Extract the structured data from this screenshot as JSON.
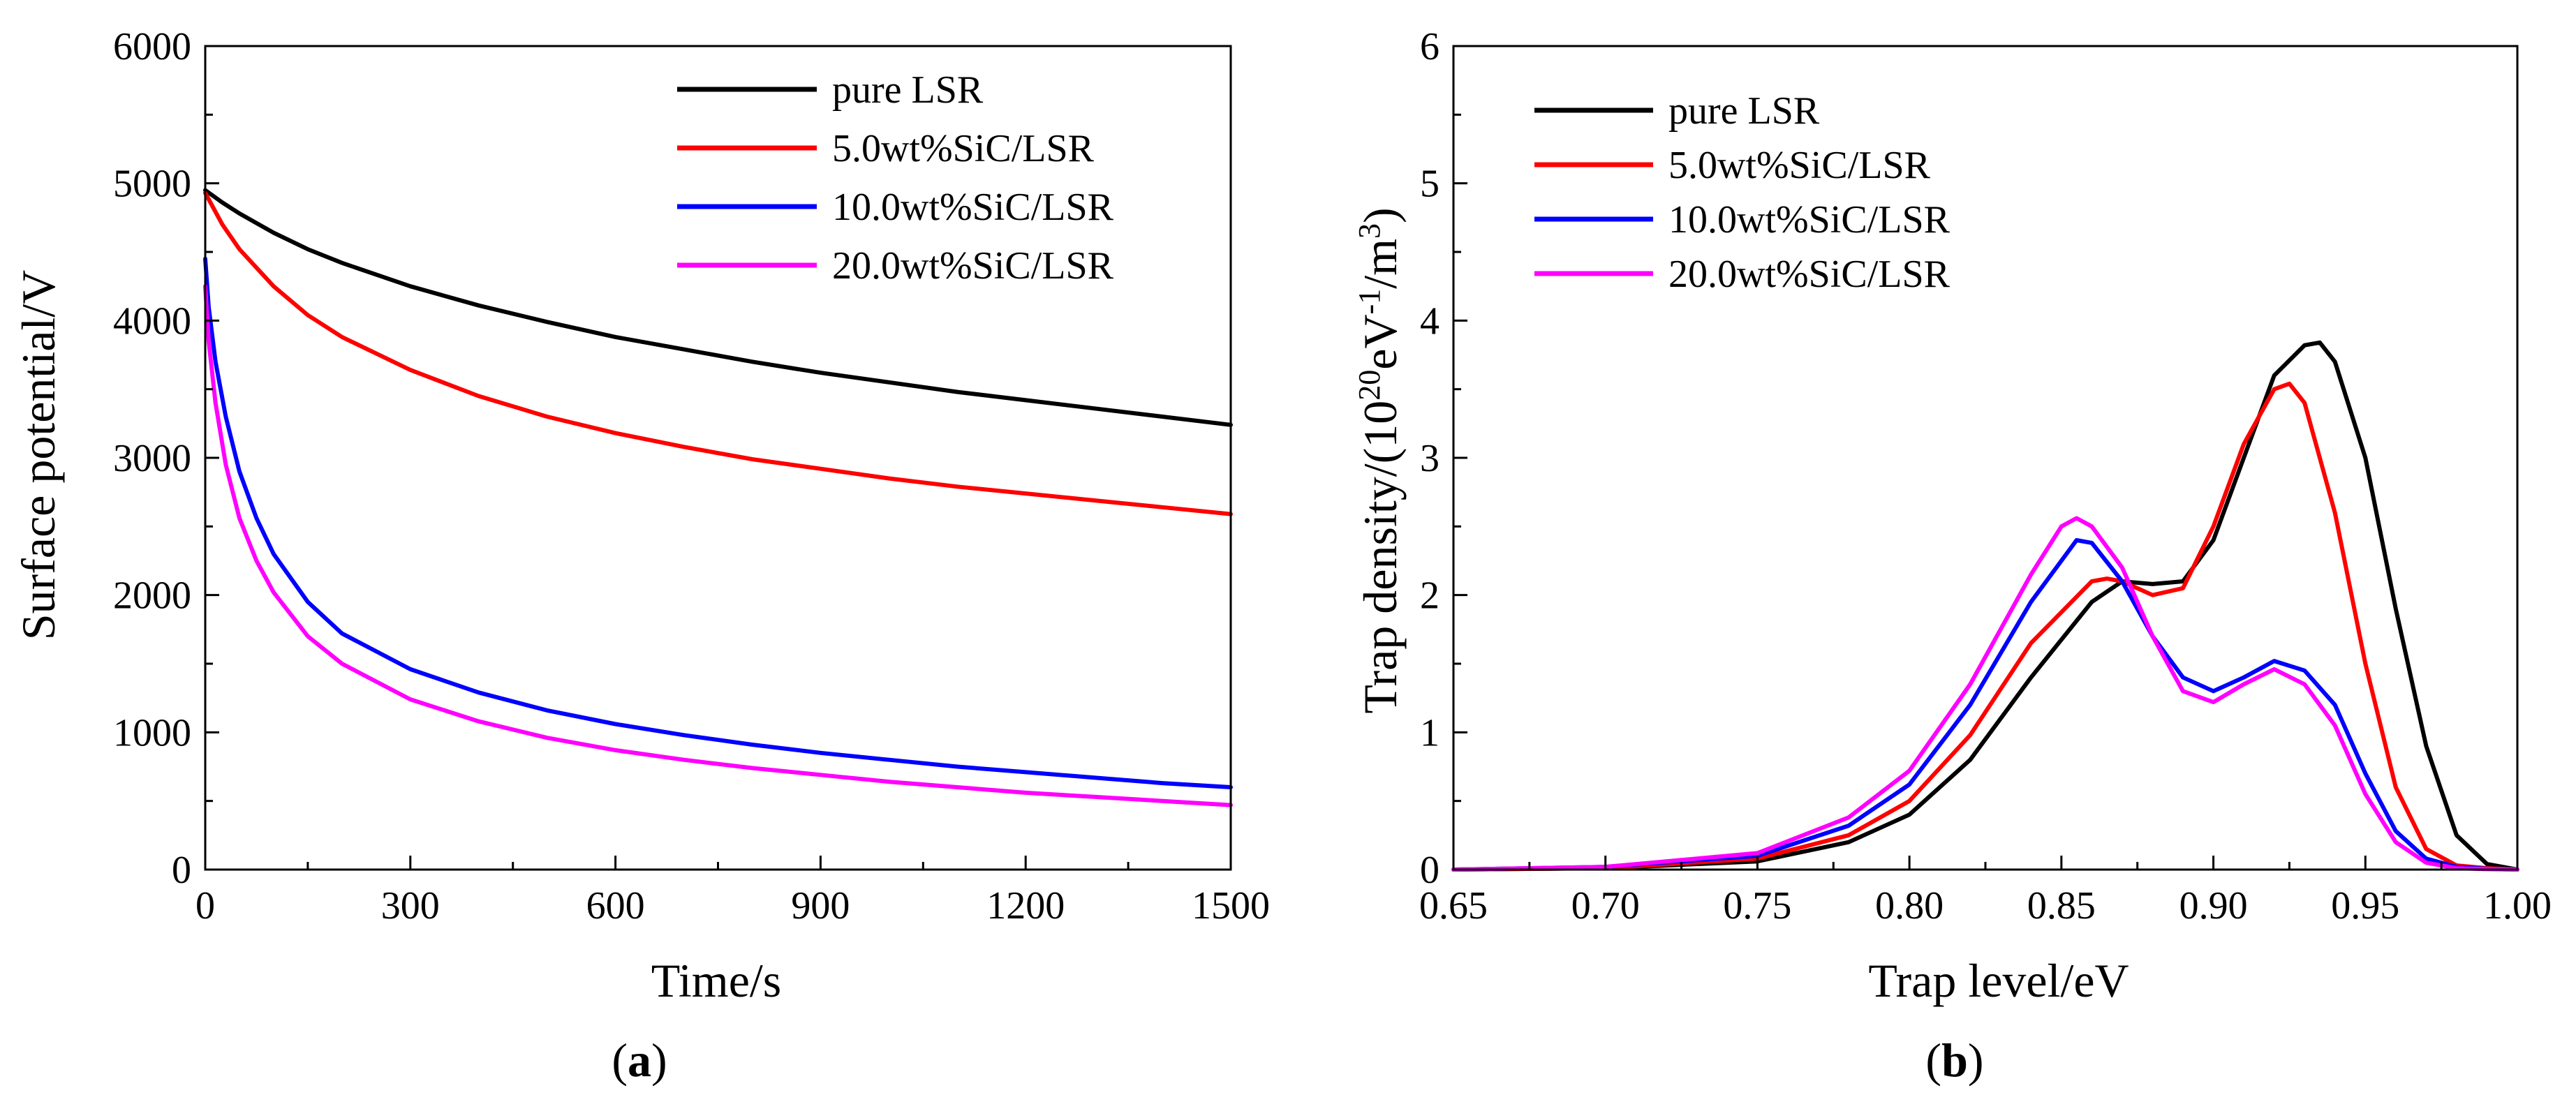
{
  "chart_data": [
    {
      "id": "a",
      "type": "line",
      "panel_label": "(a)",
      "panel_letter": "a",
      "xlabel": "Time/s",
      "ylabel": "Surface potential/V",
      "xlim": [
        0,
        1500
      ],
      "ylim": [
        0,
        6000
      ],
      "xticks": [
        0,
        300,
        600,
        900,
        1200,
        1500
      ],
      "xtick_labels": [
        "0",
        "300",
        "600",
        "900",
        "1200",
        "1500"
      ],
      "yticks": [
        0,
        1000,
        2000,
        3000,
        4000,
        5000,
        6000
      ],
      "ytick_labels": [
        "0",
        "1000",
        "2000",
        "3000",
        "4000",
        "5000",
        "6000"
      ],
      "grid": false,
      "legend_position": "top-right",
      "series": [
        {
          "name": "pure LSR",
          "color": "#000000",
          "x": [
            0,
            25,
            50,
            100,
            150,
            200,
            300,
            400,
            500,
            600,
            700,
            800,
            900,
            1000,
            1100,
            1200,
            1300,
            1400,
            1500
          ],
          "y": [
            4950,
            4860,
            4780,
            4640,
            4520,
            4420,
            4250,
            4110,
            3990,
            3880,
            3790,
            3700,
            3620,
            3550,
            3480,
            3420,
            3360,
            3300,
            3240
          ]
        },
        {
          "name": "5.0wt%SiC/LSR",
          "color": "#ff0000",
          "x": [
            0,
            25,
            50,
            100,
            150,
            200,
            300,
            400,
            500,
            600,
            700,
            800,
            900,
            1000,
            1100,
            1200,
            1300,
            1400,
            1500
          ],
          "y": [
            4930,
            4700,
            4520,
            4250,
            4040,
            3880,
            3640,
            3450,
            3300,
            3180,
            3080,
            2990,
            2920,
            2850,
            2790,
            2740,
            2690,
            2640,
            2590
          ]
        },
        {
          "name": "10.0wt%SiC/LSR",
          "color": "#0000ff",
          "x": [
            0,
            5,
            15,
            30,
            50,
            75,
            100,
            150,
            200,
            300,
            400,
            500,
            600,
            700,
            800,
            900,
            1000,
            1100,
            1200,
            1300,
            1400,
            1500
          ],
          "y": [
            4450,
            4100,
            3700,
            3300,
            2900,
            2560,
            2300,
            1950,
            1720,
            1460,
            1290,
            1160,
            1060,
            980,
            910,
            850,
            800,
            750,
            710,
            670,
            630,
            600
          ]
        },
        {
          "name": "20.0wt%SiC/LSR",
          "color": "#ff00ff",
          "x": [
            0,
            5,
            15,
            30,
            50,
            75,
            100,
            150,
            200,
            300,
            400,
            500,
            600,
            700,
            800,
            900,
            1000,
            1100,
            1200,
            1300,
            1400,
            1500
          ],
          "y": [
            4250,
            3850,
            3400,
            2950,
            2560,
            2250,
            2020,
            1700,
            1500,
            1240,
            1080,
            960,
            870,
            800,
            740,
            690,
            640,
            600,
            560,
            530,
            500,
            470
          ]
        }
      ]
    },
    {
      "id": "b",
      "type": "line",
      "panel_label": "(b)",
      "panel_letter": "b",
      "xlabel": "Trap level/eV",
      "ylabel": "Trap density/(10²⁰eV⁻¹/m³)",
      "xlim": [
        0.65,
        1.0
      ],
      "ylim": [
        0,
        6
      ],
      "xticks": [
        0.65,
        0.7,
        0.75,
        0.8,
        0.85,
        0.9,
        0.95,
        1.0
      ],
      "xtick_labels": [
        "0.65",
        "0.70",
        "0.75",
        "0.80",
        "0.85",
        "0.90",
        "0.95",
        "1.00"
      ],
      "yticks": [
        0,
        1,
        2,
        3,
        4,
        5,
        6
      ],
      "ytick_labels": [
        "0",
        "1",
        "2",
        "3",
        "4",
        "5",
        "6"
      ],
      "grid": false,
      "legend_position": "top-left",
      "series": [
        {
          "name": "pure LSR",
          "color": "#000000",
          "x": [
            0.65,
            0.7,
            0.75,
            0.78,
            0.8,
            0.82,
            0.84,
            0.86,
            0.87,
            0.88,
            0.89,
            0.9,
            0.91,
            0.92,
            0.93,
            0.935,
            0.94,
            0.95,
            0.96,
            0.97,
            0.98,
            0.99,
            1.0
          ],
          "y": [
            0,
            0.01,
            0.06,
            0.2,
            0.4,
            0.8,
            1.4,
            1.95,
            2.1,
            2.08,
            2.1,
            2.4,
            3.0,
            3.6,
            3.82,
            3.84,
            3.7,
            3.0,
            1.9,
            0.9,
            0.25,
            0.04,
            0
          ]
        },
        {
          "name": "5.0wt%SiC/LSR",
          "color": "#ff0000",
          "x": [
            0.65,
            0.7,
            0.75,
            0.78,
            0.8,
            0.82,
            0.84,
            0.86,
            0.865,
            0.87,
            0.88,
            0.89,
            0.9,
            0.91,
            0.92,
            0.925,
            0.93,
            0.94,
            0.95,
            0.96,
            0.97,
            0.98,
            0.99,
            1.0
          ],
          "y": [
            0,
            0.01,
            0.08,
            0.25,
            0.5,
            0.98,
            1.65,
            2.1,
            2.12,
            2.1,
            2.0,
            2.05,
            2.5,
            3.1,
            3.5,
            3.54,
            3.4,
            2.6,
            1.5,
            0.6,
            0.15,
            0.03,
            0.01,
            0
          ]
        },
        {
          "name": "10.0wt%SiC/LSR",
          "color": "#0000ff",
          "x": [
            0.65,
            0.7,
            0.75,
            0.78,
            0.8,
            0.82,
            0.84,
            0.855,
            0.86,
            0.87,
            0.88,
            0.89,
            0.9,
            0.91,
            0.92,
            0.93,
            0.94,
            0.95,
            0.96,
            0.97,
            0.98,
            0.99,
            1.0
          ],
          "y": [
            0,
            0.02,
            0.1,
            0.32,
            0.62,
            1.2,
            1.95,
            2.4,
            2.38,
            2.1,
            1.7,
            1.4,
            1.3,
            1.4,
            1.52,
            1.45,
            1.2,
            0.7,
            0.28,
            0.08,
            0.02,
            0.005,
            0
          ]
        },
        {
          "name": "20.0wt%SiC/LSR",
          "color": "#ff00ff",
          "x": [
            0.65,
            0.7,
            0.75,
            0.78,
            0.8,
            0.82,
            0.84,
            0.85,
            0.855,
            0.86,
            0.87,
            0.88,
            0.89,
            0.9,
            0.91,
            0.92,
            0.93,
            0.94,
            0.95,
            0.96,
            0.97,
            0.98,
            0.99,
            1.0
          ],
          "y": [
            0,
            0.02,
            0.12,
            0.38,
            0.72,
            1.35,
            2.15,
            2.5,
            2.56,
            2.5,
            2.2,
            1.7,
            1.3,
            1.22,
            1.35,
            1.46,
            1.35,
            1.05,
            0.55,
            0.2,
            0.05,
            0.01,
            0.003,
            0
          ]
        }
      ]
    }
  ]
}
